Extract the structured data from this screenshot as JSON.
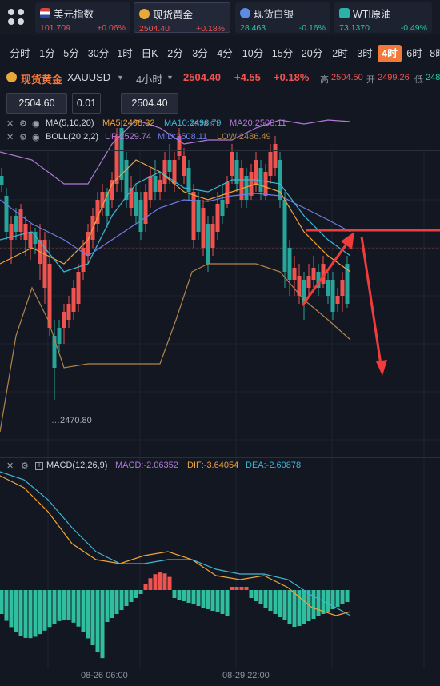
{
  "tickers": [
    {
      "name": "美元指数",
      "price": "101.709",
      "change": "+0.06%",
      "dir": "up",
      "icon_color": "#d8433f",
      "icon": "us-flag-icon"
    },
    {
      "name": "现货黄金",
      "price": "2504.40",
      "change": "+0.18%",
      "dir": "up",
      "icon_color": "#e8a93a",
      "icon": "gold-coin-icon"
    },
    {
      "name": "现货白银",
      "price": "28.463",
      "change": "-0.16%",
      "dir": "down",
      "icon_color": "#5b8de6",
      "icon": "silver-coin-icon"
    },
    {
      "name": "WTI原油",
      "price": "73.1370",
      "change": "-0.49%",
      "dir": "down",
      "icon_color": "#2bb3a6",
      "icon": "oil-drop-icon"
    }
  ],
  "timeframes": [
    "分时",
    "1分",
    "5分",
    "30分",
    "1时",
    "日K",
    "2分",
    "3分",
    "4分",
    "10分",
    "15分",
    "20分",
    "2时",
    "3时",
    "4时",
    "6时",
    "8时"
  ],
  "active_timeframe": "4时",
  "symbol": {
    "name": "现货黄金",
    "code": "XAUUSD",
    "interval": "4小时",
    "price": "2504.40",
    "change": "+4.55",
    "change_pct": "+0.18%",
    "high_label": "高",
    "high": "2504.50",
    "open_label": "开",
    "open": "2499.26",
    "low_label": "低",
    "low": "248"
  },
  "order": {
    "sell_price": "2504.60",
    "quantity": "0.01",
    "buy_price": "2504.40"
  },
  "ma_legend": {
    "title": "MA(5,10,20)",
    "ma5": "MA5:2498.32",
    "ma10": "MA10:2498.79",
    "ma20": "MA20:2508.11",
    "overlap": "2528.91",
    "colors": {
      "ma5": "#f0a33c",
      "ma10": "#3fb6d8",
      "ma20": "#b07ad8"
    }
  },
  "boll_legend": {
    "title": "BOLL(20,2,2)",
    "up": "UP:2529.74",
    "mid": "MID:2508.11",
    "low": "LOW:2486.49",
    "colors": {
      "up": "#b07ad8",
      "mid": "#6f7ce6",
      "low": "#b4844a"
    }
  },
  "macd_legend": {
    "title": "MACD(12,26,9)",
    "macd": "MACD:-2.06352",
    "dif": "DIF:-3.64054",
    "dea": "DEA:-2.60878",
    "colors": {
      "macd": "#b07ad8",
      "dif": "#f0a33c",
      "dea": "#3fb6d8"
    }
  },
  "price_marker_low": "2470.80",
  "time_labels": [
    "08-26 06:00",
    "08-29 22:00"
  ],
  "colors": {
    "bull": "#ef5350",
    "bear": "#26a69a",
    "macd_pos": "#ef5350",
    "macd_neg": "#2fbfa0",
    "annotation": "#f23c3c"
  }
}
